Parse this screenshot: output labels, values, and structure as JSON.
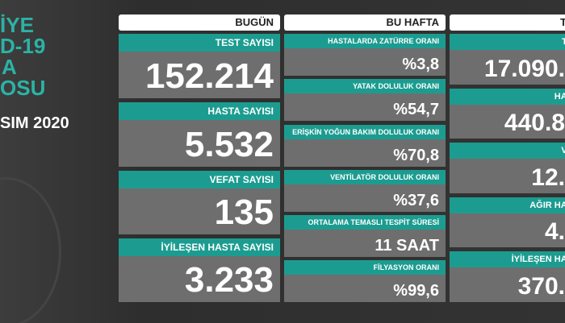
{
  "sidebar": {
    "lines": [
      "İYE",
      "D-19",
      "A",
      "OSU"
    ],
    "date": "SIM 2020"
  },
  "columns": [
    {
      "header": "BUGÜN",
      "cards": [
        {
          "label": "TEST SAYISI",
          "value": "152.214"
        },
        {
          "label": "HASTA SAYISI",
          "value": "5.532"
        },
        {
          "label": "VEFAT SAYISI",
          "value": "135"
        },
        {
          "label": "İYİLEŞEN HASTA SAYISI",
          "value": "3.233"
        }
      ]
    },
    {
      "header": "BU HAFTA",
      "cards": [
        {
          "label": "HASTALARDA ZATÜRRE ORANI",
          "value": "%3,8"
        },
        {
          "label": "YATAK DOLULUK ORANI",
          "value": "%54,7"
        },
        {
          "label": "ERİŞKİN YOĞUN BAKIM DOLULUK ORANI",
          "value": "%70,8"
        },
        {
          "label": "VENTİLATÖR DOLULUK ORANI",
          "value": "%37,6"
        },
        {
          "label": "ORTALAMA TEMASLI TESPİT SÜRESİ",
          "value": "11 SAAT"
        },
        {
          "label": "FİLYASYON ORANI",
          "value": "%99,6"
        }
      ]
    },
    {
      "header": "T",
      "cards": [
        {
          "label": "TE",
          "value": "17.090."
        },
        {
          "label": "HAS",
          "value": "440.8"
        },
        {
          "label": "VE",
          "value": "12."
        },
        {
          "label": "AĞIR HAS",
          "value": "4."
        },
        {
          "label": "İYİLEŞEN HAS",
          "value": "370."
        }
      ]
    }
  ]
}
